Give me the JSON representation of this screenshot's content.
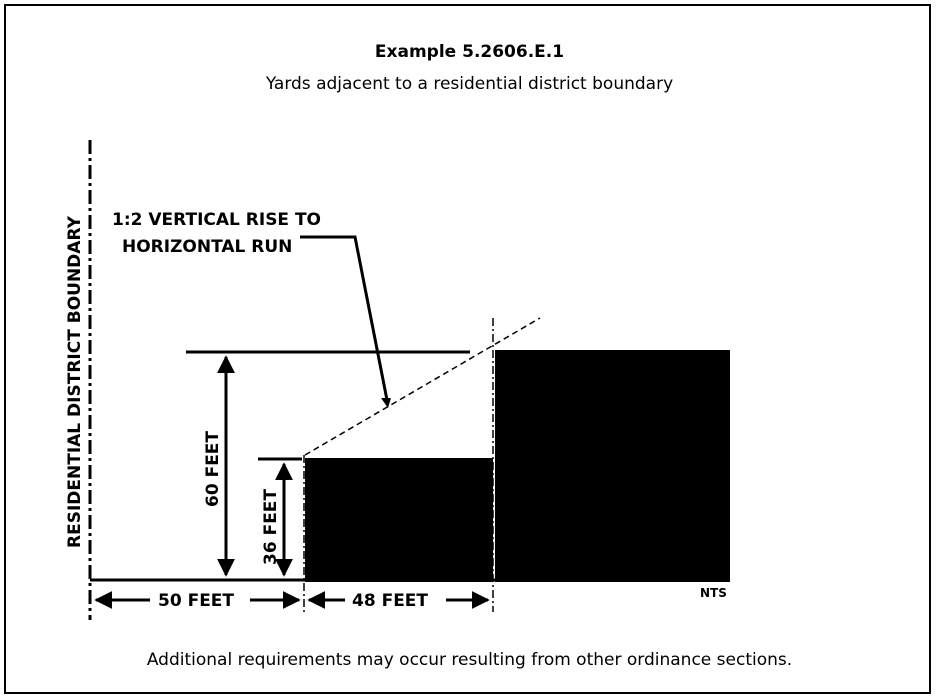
{
  "title": "Example 5.2606.E.1",
  "subtitle": "Yards adjacent to a residential district boundary",
  "footnote": "Additional requirements may occur resulting from other ordinance sections.",
  "diagram": {
    "boundary_label": "RESIDENTIAL DISTRICT BOUNDARY",
    "slope_label_line1": "1:2 VERTICAL RISE TO",
    "slope_label_line2": "HORIZONTAL RUN",
    "height_60_label": "60 FEET",
    "height_36_label": "36 FEET",
    "width_50_label": "50 FEET",
    "width_48_label": "48 FEET",
    "scale_note": "NTS"
  }
}
